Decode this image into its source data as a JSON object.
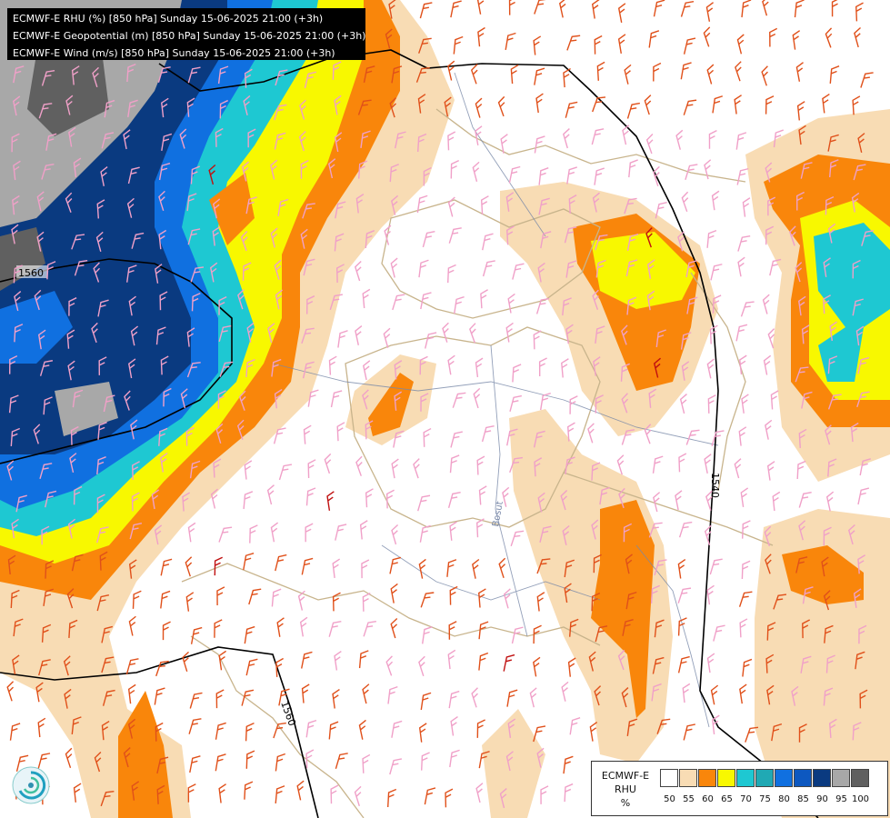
{
  "header": {
    "lines": [
      "ECMWF-E RHU (%) [850 hPa] Sunday 15-06-2025 21:00 (+3h)",
      "ECMWF-E Geopotential (m) [850 hPa] Sunday 15-06-2025 21:00 (+3h)",
      "ECMWF-E Wind (m/s) [850 hPa] Sunday 15-06-2025 21:00 (+3h)"
    ]
  },
  "contours": {
    "labels": [
      "1560",
      "1540",
      "1560"
    ]
  },
  "map_labels": {
    "river": "Bosut"
  },
  "legend": {
    "title_line1": "ECMWF-E",
    "title_line2": "RHU",
    "unit": "%",
    "ticks": [
      "50",
      "55",
      "60",
      "65",
      "70",
      "75",
      "80",
      "85",
      "90",
      "95",
      "100"
    ],
    "colors": [
      "#ffffff",
      "#f8dcb4",
      "#f9860b",
      "#f8f800",
      "#1ec8d2",
      "#20a9b4",
      "#1070e0",
      "#0d58c0",
      "#0a3a80",
      "#a8a8a8",
      "#606060"
    ]
  },
  "colors": {
    "wind_pink": "#f0a0c8",
    "wind_orange": "#e0501a",
    "wind_red": "#c01010",
    "border": "#c8b48c",
    "river": "#7888a8",
    "contour": "#000000"
  }
}
